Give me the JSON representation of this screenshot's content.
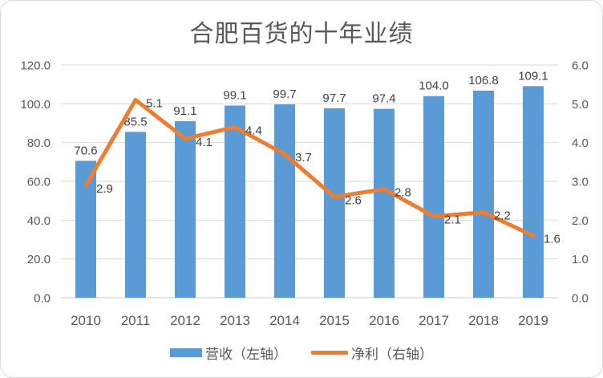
{
  "title": "合肥百货的十年业绩",
  "chart_data": {
    "type": "combo-bar-line",
    "title": "合肥百货的十年业绩",
    "categories": [
      "2010",
      "2011",
      "2012",
      "2013",
      "2014",
      "2015",
      "2016",
      "2017",
      "2018",
      "2019"
    ],
    "series": [
      {
        "name": "营收（左轴）",
        "chart_type": "bar",
        "axis": "left",
        "color": "#5B9BD5",
        "values": [
          70.6,
          85.5,
          91.1,
          99.1,
          99.7,
          97.7,
          97.4,
          104.0,
          106.8,
          109.1
        ],
        "labels": [
          "70.6",
          "85.5",
          "91.1",
          "99.1",
          "99.7",
          "97.7",
          "97.4",
          "104.0",
          "106.8",
          "109.1"
        ]
      },
      {
        "name": "净利（右轴）",
        "chart_type": "line",
        "axis": "right",
        "color": "#ED7D31",
        "values": [
          2.9,
          5.1,
          4.1,
          4.4,
          3.7,
          2.6,
          2.8,
          2.1,
          2.2,
          1.6
        ],
        "labels": [
          "2.9",
          "5.1",
          "4.1",
          "4.4",
          "3.7",
          "2.6",
          "2.8",
          "2.1",
          "2.2",
          "1.6"
        ]
      }
    ],
    "left_axis": {
      "min": 0,
      "max": 120,
      "step": 20,
      "tick_labels": [
        "0.0",
        "20.0",
        "40.0",
        "60.0",
        "80.0",
        "100.0",
        "120.0"
      ]
    },
    "right_axis": {
      "min": 0,
      "max": 6,
      "step": 1,
      "tick_labels": [
        "0.0",
        "1.0",
        "2.0",
        "3.0",
        "4.0",
        "5.0",
        "6.0"
      ]
    },
    "grid": true,
    "legend_position": "bottom",
    "colors": {
      "gridline": "#D9D9D9",
      "axis_line": "#CCCCCC",
      "tick_text": "#595959",
      "data_label_text": "#404040",
      "title_text": "#595959"
    }
  }
}
